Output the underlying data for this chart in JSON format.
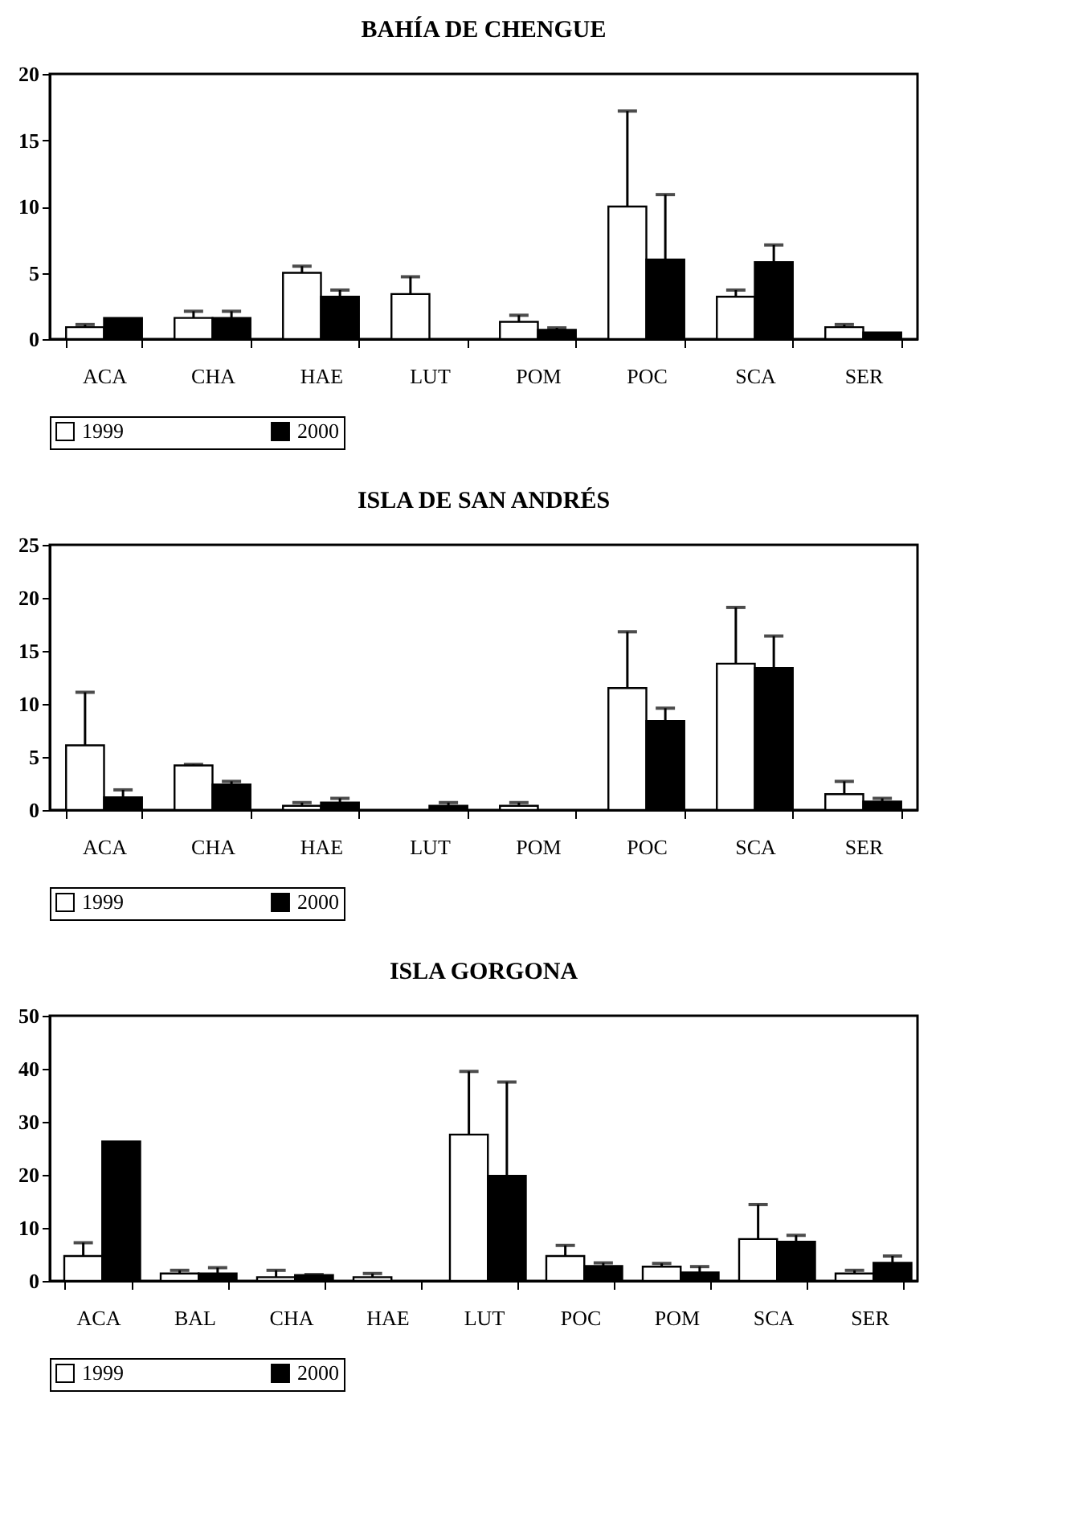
{
  "chart_data": [
    {
      "type": "bar",
      "title": "BAHÍA DE CHENGUE",
      "categories": [
        "ACA",
        "CHA",
        "HAE",
        "LUT",
        "POM",
        "POC",
        "SCA",
        "SER"
      ],
      "ylim": [
        0,
        20
      ],
      "yticks": [
        0,
        5,
        10,
        15,
        20
      ],
      "grid": false,
      "legend": "bottom",
      "series": [
        {
          "name": "1999",
          "color": "#ffffff",
          "values": [
            0.9,
            1.6,
            5.0,
            3.4,
            1.3,
            10.0,
            3.2,
            0.9
          ],
          "errors": [
            [
              0.9,
              1.1
            ],
            [
              1.6,
              2.1
            ],
            [
              5.0,
              5.5
            ],
            [
              3.4,
              4.7
            ],
            [
              1.3,
              1.8
            ],
            [
              10.0,
              17.2
            ],
            [
              3.2,
              3.7
            ],
            [
              0.9,
              1.1
            ]
          ]
        },
        {
          "name": "2000",
          "color": "#000000",
          "values": [
            1.6,
            1.6,
            3.2,
            null,
            0.7,
            6.0,
            5.8,
            0.5
          ],
          "errors": [
            null,
            [
              1.6,
              2.1
            ],
            [
              3.2,
              3.7
            ],
            null,
            [
              0.7,
              0.85
            ],
            [
              6.0,
              10.9
            ],
            [
              5.8,
              7.1
            ],
            null
          ]
        }
      ]
    },
    {
      "type": "bar",
      "title": "ISLA DE SAN ANDRÉS",
      "categories": [
        "ACA",
        "CHA",
        "HAE",
        "LUT",
        "POM",
        "POC",
        "SCA",
        "SER"
      ],
      "ylim": [
        0,
        25
      ],
      "yticks": [
        0,
        5,
        10,
        15,
        20,
        25
      ],
      "grid": false,
      "legend": "bottom",
      "series": [
        {
          "name": "1999",
          "color": "#ffffff",
          "values": [
            6.1,
            4.2,
            0.4,
            null,
            0.4,
            11.5,
            13.8,
            1.5
          ],
          "errors": [
            [
              6.1,
              11.1
            ],
            [
              4.2,
              4.3
            ],
            [
              0.4,
              0.7
            ],
            null,
            [
              0.4,
              0.7
            ],
            [
              11.5,
              16.8
            ],
            [
              13.8,
              19.1
            ],
            [
              1.5,
              2.7
            ]
          ]
        },
        {
          "name": "2000",
          "color": "#000000",
          "values": [
            1.2,
            2.4,
            0.7,
            0.4,
            null,
            8.4,
            13.4,
            0.8
          ],
          "errors": [
            [
              1.2,
              1.9
            ],
            [
              2.4,
              2.7
            ],
            [
              0.7,
              1.1
            ],
            [
              0.4,
              0.7
            ],
            null,
            [
              8.4,
              9.6
            ],
            [
              13.4,
              16.4
            ],
            [
              0.8,
              1.1
            ]
          ]
        }
      ]
    },
    {
      "type": "bar",
      "title": "ISLA GORGONA",
      "categories": [
        "ACA",
        "BAL",
        "CHA",
        "HAE",
        "LUT",
        "POC",
        "POM",
        "SCA",
        "SER"
      ],
      "ylim": [
        0,
        50
      ],
      "yticks": [
        0,
        10,
        20,
        30,
        40,
        50
      ],
      "grid": false,
      "legend": "bottom",
      "series": [
        {
          "name": "1999",
          "color": "#ffffff",
          "values": [
            4.7,
            1.4,
            0.7,
            0.7,
            27.6,
            4.7,
            2.7,
            7.9,
            1.4
          ],
          "errors": [
            [
              4.7,
              7.2
            ],
            [
              1.4,
              2.0
            ],
            [
              0.7,
              2.0
            ],
            [
              0.7,
              1.4
            ],
            [
              27.6,
              39.5
            ],
            [
              4.7,
              6.7
            ],
            [
              2.7,
              3.3
            ],
            [
              7.9,
              14.4
            ],
            [
              1.4,
              2.0
            ]
          ]
        },
        {
          "name": "2000",
          "color": "#000000",
          "values": [
            26.3,
            1.4,
            1.1,
            null,
            19.8,
            2.8,
            1.6,
            7.4,
            3.4
          ],
          "errors": [
            null,
            [
              1.4,
              2.5
            ],
            [
              1.1,
              1.2
            ],
            null,
            [
              19.8,
              37.5
            ],
            [
              2.8,
              3.4
            ],
            [
              1.6,
              2.7
            ],
            [
              7.4,
              8.6
            ],
            [
              3.4,
              4.7
            ]
          ]
        }
      ]
    }
  ]
}
